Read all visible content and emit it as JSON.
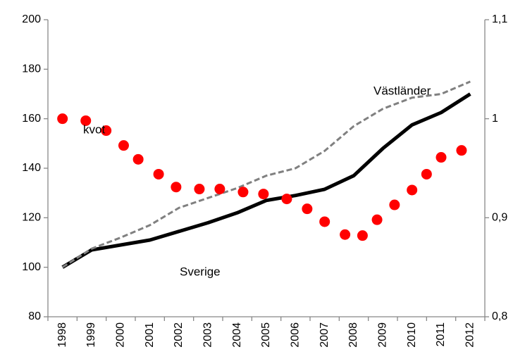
{
  "chart_data": {
    "type": "line",
    "categories": [
      "1998",
      "1999",
      "2000",
      "2001",
      "2002",
      "2003",
      "2004",
      "2005",
      "2006",
      "2007",
      "2008",
      "2009",
      "2010",
      "2011",
      "2012"
    ],
    "series": [
      {
        "name": "Sverige",
        "color": "#000000",
        "values": [
          100,
          107,
          109,
          111,
          114.5,
          118,
          122,
          127,
          129,
          131.5,
          137,
          148,
          157.5,
          162.5,
          170
        ]
      },
      {
        "name": "Västländer",
        "color": "#808080",
        "dashed": true,
        "values": [
          100,
          107.5,
          112,
          117,
          124,
          128,
          132,
          137,
          140,
          147,
          157,
          164,
          168.5,
          170,
          175
        ]
      },
      {
        "name": "kvot",
        "color": "#ff0000",
        "axis": "y2",
        "marker": "dot",
        "x": [
          1998.0,
          1998.8,
          1999.5,
          2000.1,
          2000.6,
          2001.3,
          2001.9,
          2002.7,
          2003.4,
          2004.2,
          2004.9,
          2005.7,
          2006.4,
          2007.0,
          2007.7,
          2008.3,
          2008.8,
          2009.4,
          2010.0,
          2010.5,
          2011.0,
          2011.7
        ],
        "values": [
          1.0,
          0.998,
          0.988,
          0.973,
          0.959,
          0.944,
          0.931,
          0.929,
          0.929,
          0.926,
          0.924,
          0.919,
          0.909,
          0.896,
          0.883,
          0.882,
          0.898,
          0.913,
          0.928,
          0.944,
          0.961,
          0.968
        ]
      }
    ],
    "annotations": [
      "kvot",
      "Västländer",
      "Sverige"
    ],
    "ylim": [
      80,
      200
    ],
    "yticks": [
      80,
      100,
      120,
      140,
      160,
      180,
      200
    ],
    "y2lim": [
      0.8,
      1.1
    ],
    "y2ticks": [
      {
        "value": 0.8,
        "label": "0,8"
      },
      {
        "value": 0.9,
        "label": "0,9"
      },
      1,
      {
        "value": 1.1,
        "label": "1,1"
      }
    ]
  }
}
